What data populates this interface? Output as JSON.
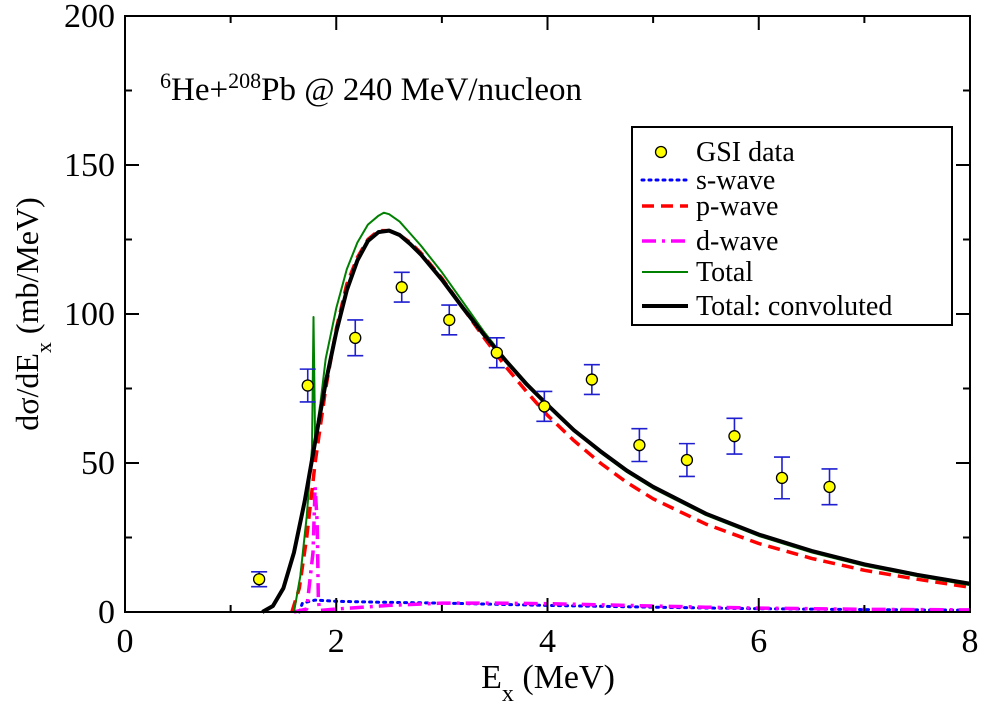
{
  "chart_data": {
    "type": "line",
    "title_parts": {
      "pre_sup": "6",
      "mid1": "He+",
      "mid_sup": "208",
      "post": "Pb @ 240 MeV/nucleon"
    },
    "xlabel_main": "E",
    "xlabel_sub": "x",
    "xlabel_unit": " (MeV)",
    "ylabel_main": "dσ/dE",
    "ylabel_sub": "x",
    "ylabel_unit": " (mb/MeV)",
    "xlim": [
      0,
      8
    ],
    "ylim": [
      0,
      200
    ],
    "x_ticks": [
      "0",
      "2",
      "4",
      "6",
      "8"
    ],
    "y_ticks": [
      "0",
      "50",
      "100",
      "150",
      "200"
    ],
    "grid": false,
    "legend_position": "top-right",
    "scatter": {
      "name": "GSI data",
      "color": "#1f1fd0",
      "fill": "#ffff00",
      "points": [
        {
          "x": 1.27,
          "y": 11,
          "err": 2.5
        },
        {
          "x": 1.73,
          "y": 76,
          "err": 5.5
        },
        {
          "x": 2.18,
          "y": 92,
          "err": 6
        },
        {
          "x": 2.62,
          "y": 109,
          "err": 5
        },
        {
          "x": 3.07,
          "y": 98,
          "err": 5
        },
        {
          "x": 3.52,
          "y": 87,
          "err": 5
        },
        {
          "x": 3.97,
          "y": 69,
          "err": 5
        },
        {
          "x": 4.42,
          "y": 78,
          "err": 5
        },
        {
          "x": 4.87,
          "y": 56,
          "err": 5.5
        },
        {
          "x": 5.32,
          "y": 51,
          "err": 5.5
        },
        {
          "x": 5.77,
          "y": 59,
          "err": 6
        },
        {
          "x": 6.22,
          "y": 45,
          "err": 7
        },
        {
          "x": 6.67,
          "y": 42,
          "err": 6
        }
      ]
    },
    "series": [
      {
        "name": "s-wave",
        "color": "#0000ff",
        "style": "dotted",
        "points": [
          [
            1.65,
            0
          ],
          [
            1.68,
            3
          ],
          [
            1.8,
            4
          ],
          [
            2.0,
            3.6
          ],
          [
            2.4,
            3.3
          ],
          [
            3.0,
            3
          ],
          [
            4.0,
            2.2
          ],
          [
            5.0,
            1.6
          ],
          [
            6.0,
            1.1
          ],
          [
            7.0,
            0.8
          ],
          [
            8.0,
            0.6
          ]
        ]
      },
      {
        "name": "p-wave",
        "color": "#ff0000",
        "style": "dashed",
        "points": [
          [
            1.58,
            0
          ],
          [
            1.65,
            8
          ],
          [
            1.72,
            25
          ],
          [
            1.8,
            50
          ],
          [
            1.9,
            75
          ],
          [
            2.0,
            95
          ],
          [
            2.1,
            110
          ],
          [
            2.2,
            119
          ],
          [
            2.3,
            125
          ],
          [
            2.4,
            128
          ],
          [
            2.5,
            128
          ],
          [
            2.6,
            126.5
          ],
          [
            2.7,
            124
          ],
          [
            2.8,
            120.5
          ],
          [
            3.0,
            112
          ],
          [
            3.2,
            102
          ],
          [
            3.4,
            92
          ],
          [
            3.6,
            82.5
          ],
          [
            3.8,
            74
          ],
          [
            4.0,
            66
          ],
          [
            4.25,
            57.5
          ],
          [
            4.5,
            50
          ],
          [
            4.75,
            43.5
          ],
          [
            5.0,
            38
          ],
          [
            5.5,
            29.5
          ],
          [
            6.0,
            23
          ],
          [
            6.5,
            18
          ],
          [
            7.0,
            14
          ],
          [
            7.5,
            11
          ],
          [
            8.0,
            8.3
          ]
        ]
      },
      {
        "name": "d-wave",
        "color": "#ff00ff",
        "style": "dashdot",
        "points": [
          [
            1.6,
            0
          ],
          [
            1.72,
            1
          ],
          [
            1.78,
            20
          ],
          [
            1.8,
            42
          ],
          [
            1.82,
            30
          ],
          [
            1.83,
            5
          ],
          [
            1.84,
            0.5
          ],
          [
            2.0,
            1
          ],
          [
            2.5,
            2.2
          ],
          [
            3.0,
            3
          ],
          [
            3.5,
            3
          ],
          [
            4.0,
            2.8
          ],
          [
            4.5,
            2.4
          ],
          [
            5.0,
            2
          ],
          [
            5.5,
            1.6
          ],
          [
            6.0,
            1.3
          ],
          [
            6.5,
            1.1
          ],
          [
            7.0,
            0.9
          ],
          [
            8.0,
            0.7
          ]
        ]
      },
      {
        "name": "Total",
        "color": "#008000",
        "style": "solid-thin",
        "points": [
          [
            1.6,
            0
          ],
          [
            1.66,
            12
          ],
          [
            1.72,
            32
          ],
          [
            1.77,
            55
          ],
          [
            1.785,
            99
          ],
          [
            1.8,
            58
          ],
          [
            1.85,
            70
          ],
          [
            1.9,
            85
          ],
          [
            2.0,
            102
          ],
          [
            2.1,
            115
          ],
          [
            2.2,
            124
          ],
          [
            2.3,
            130
          ],
          [
            2.4,
            133
          ],
          [
            2.45,
            134
          ],
          [
            2.5,
            133.5
          ],
          [
            2.6,
            131
          ],
          [
            2.7,
            127
          ],
          [
            2.8,
            123
          ],
          [
            3.0,
            114
          ],
          [
            3.2,
            104
          ],
          [
            3.4,
            94
          ],
          [
            3.6,
            85
          ],
          [
            3.8,
            77
          ],
          [
            4.0,
            69.5
          ],
          [
            4.25,
            61
          ],
          [
            4.5,
            53.5
          ],
          [
            4.75,
            47
          ],
          [
            5.0,
            41.5
          ],
          [
            5.5,
            32.5
          ],
          [
            6.0,
            25.5
          ],
          [
            6.5,
            20
          ],
          [
            7.0,
            15.5
          ],
          [
            7.5,
            12
          ],
          [
            8.0,
            9
          ]
        ]
      },
      {
        "name": "Total: convoluted",
        "color": "#000000",
        "style": "solid-thick",
        "points": [
          [
            1.3,
            0
          ],
          [
            1.4,
            2
          ],
          [
            1.5,
            8
          ],
          [
            1.6,
            20
          ],
          [
            1.7,
            37
          ],
          [
            1.8,
            57
          ],
          [
            1.9,
            77
          ],
          [
            2.0,
            94
          ],
          [
            2.1,
            108
          ],
          [
            2.2,
            118
          ],
          [
            2.3,
            124.5
          ],
          [
            2.4,
            127.5
          ],
          [
            2.5,
            128
          ],
          [
            2.6,
            126.5
          ],
          [
            2.7,
            123.5
          ],
          [
            2.8,
            120
          ],
          [
            3.0,
            111.5
          ],
          [
            3.2,
            102
          ],
          [
            3.4,
            93
          ],
          [
            3.6,
            84.5
          ],
          [
            3.8,
            76.5
          ],
          [
            4.0,
            69.5
          ],
          [
            4.25,
            61
          ],
          [
            4.5,
            54
          ],
          [
            4.75,
            47.5
          ],
          [
            5.0,
            42
          ],
          [
            5.5,
            33
          ],
          [
            6.0,
            26
          ],
          [
            6.5,
            20.5
          ],
          [
            7.0,
            16
          ],
          [
            7.5,
            12.5
          ],
          [
            8.0,
            9.5
          ]
        ]
      },
      {
        "name": "",
        "color": "#000000",
        "style": "baseline",
        "points": [
          [
            1.0,
            0
          ],
          [
            8.0,
            0
          ]
        ]
      }
    ]
  }
}
